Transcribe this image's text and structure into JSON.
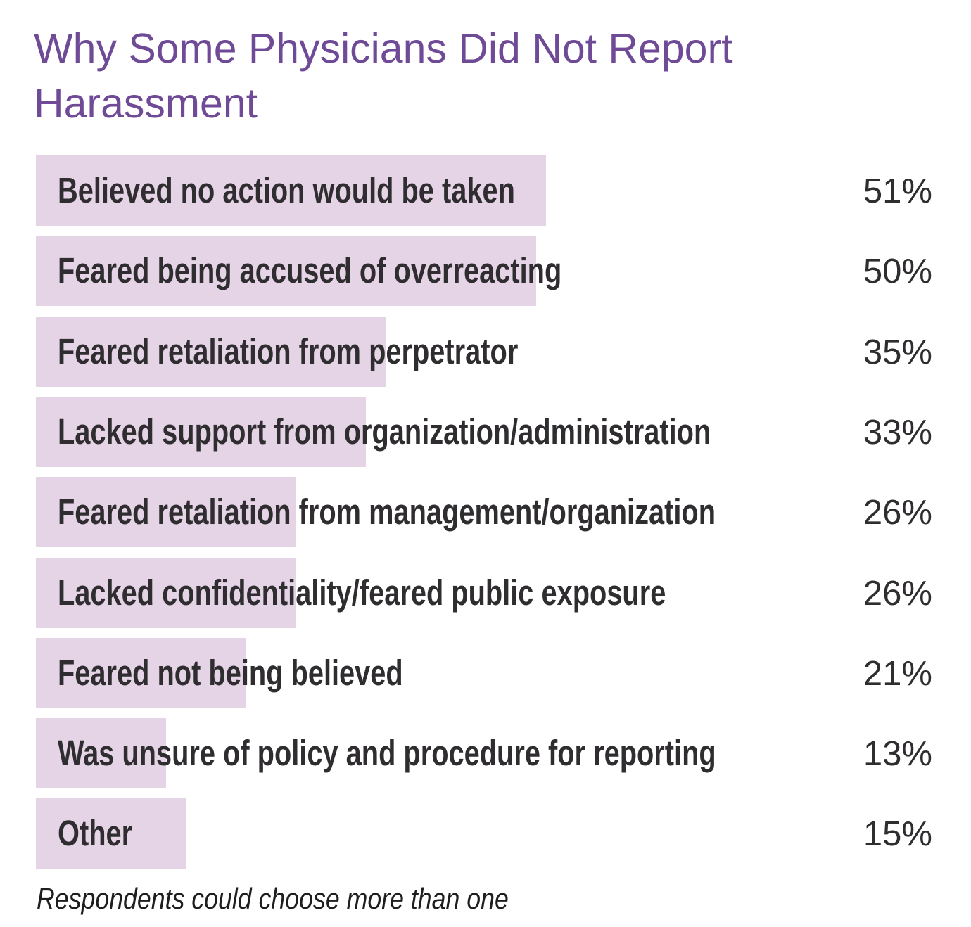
{
  "chart_data": {
    "type": "bar",
    "orientation": "horizontal",
    "title": "Why Some Physicians Did Not Report Harassment",
    "categories": [
      "Believed no action would be taken",
      "Feared being accused of overreacting",
      "Feared retaliation from perpetrator",
      "Lacked support from organization/administration",
      "Feared retaliation from management/organization",
      "Lacked confidentiality/feared public exposure",
      "Feared not being believed",
      "Was unsure of policy and procedure for reporting",
      "Other"
    ],
    "values": [
      51,
      50,
      35,
      33,
      26,
      26,
      21,
      13,
      15
    ],
    "value_labels": [
      "51%",
      "50%",
      "35%",
      "33%",
      "26%",
      "26%",
      "21%",
      "13%",
      "15%"
    ],
    "unit": "%",
    "xlim": [
      0,
      100
    ],
    "grid": false,
    "note": "Respondents could choose more than one",
    "colors": {
      "title": "#6f4a96",
      "bar": "#e5d3e6",
      "text": "#2f2d30"
    }
  }
}
